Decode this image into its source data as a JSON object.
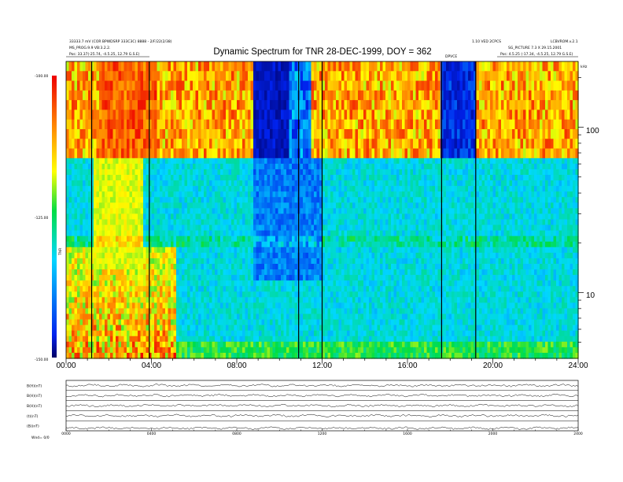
{
  "header": {
    "title": "Dynamic Spectrum for TNR 28-DEC-1999, DOY = 362",
    "left_line1": "33333.7 mV (COR BPWDSRP 333C3C) 8888 - 2/F/22(2/38)",
    "left_line2": "MS_PROG.9.9 VB:3.2.2.",
    "left_line3": "Pos: 33.37(-25.74, -4.5.25, 12.79 G.S.E)",
    "right_line1": "1.10 VED 2CPCS",
    "right_line2": "LCBVROM.v.2.1",
    "right_line3": "SG_PICTURE 7.3 X 29.15.2001",
    "right_line4": "Pos: 4.5.25 (-17.34, -4.5.25, 12.79 G.S.E)",
    "mid_label": "DPVCE"
  },
  "colorbar": {
    "ticks": [
      "-100.00",
      "-125.00",
      "-150.00"
    ],
    "unit_label": "TNR",
    "colors": [
      "#000066",
      "#0022ee",
      "#00d8ff",
      "#00dd44",
      "#ffff00",
      "#ff8800",
      "#ee0000"
    ]
  },
  "right_axis": {
    "unit_label": "kHz",
    "tick_labels": [
      "100",
      "10"
    ]
  },
  "x_axis": {
    "tick_labels": [
      "00:00",
      "04:00",
      "08:00",
      "12:00",
      "16:00",
      "20:00",
      "24:00"
    ]
  },
  "panels": {
    "labels": [
      "B(H)(nT)",
      "B(H)(nT)",
      "B(H)(nT)",
      "(t)(nT)",
      "(B)(nT)"
    ],
    "x_tick_labels": [
      "0000",
      "0400",
      "0800",
      "1200",
      "1600",
      "2000",
      "2400"
    ],
    "footer": "Wnd=  0/0"
  },
  "chart_data": {
    "type": "heatmap",
    "title": "Dynamic Spectrum for TNR 28-DEC-1999, DOY = 362",
    "x_ticks": [
      "00:00",
      "04:00",
      "08:00",
      "12:00",
      "16:00",
      "20:00",
      "24:00"
    ],
    "x_range_hours": [
      0,
      24
    ],
    "y_scale": "log",
    "y_unit": "kHz",
    "y_ticks": [
      100,
      10
    ],
    "y_range_khz": [
      4,
      250
    ],
    "z_range_db": [
      -150,
      -100
    ],
    "z_ticks": [
      -100,
      -125,
      -150
    ],
    "band_split_khz": 65,
    "vertical_markers_hours": [
      1.2,
      3.9,
      10.9,
      12.0,
      17.6,
      19.2
    ]
  }
}
